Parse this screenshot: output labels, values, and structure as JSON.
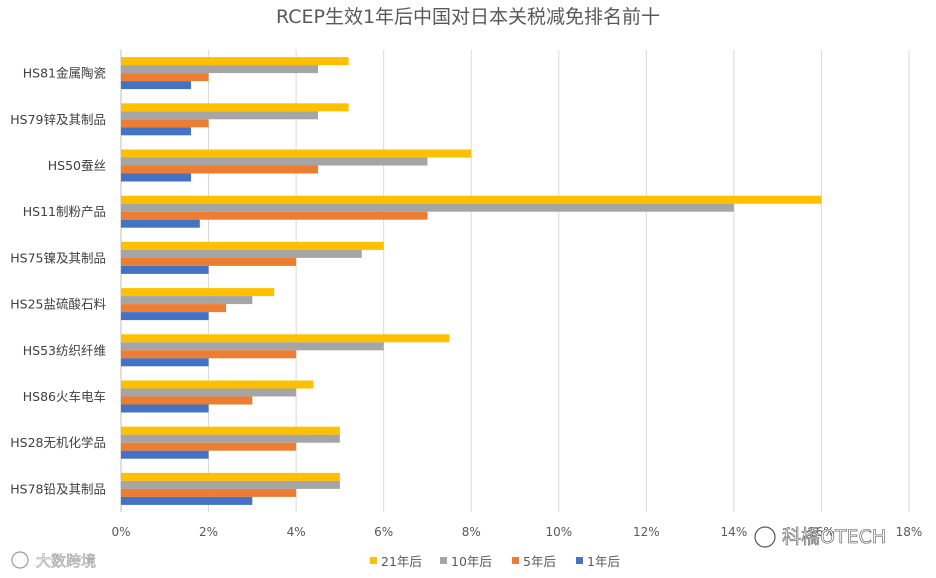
{
  "chart_data": {
    "type": "bar",
    "orientation": "horizontal",
    "title": "RCEP生效1年后中国对日本关税减免排名前十",
    "categories": [
      "HS81金属陶瓷",
      "HS79锌及其制品",
      "HS50蚕丝",
      "HS11制粉产品",
      "HS75镍及其制品",
      "HS25盐硫酸石料",
      "HS53纺织纤维",
      "HS86火车电车",
      "HS28无机化学品",
      "HS78铅及其制品"
    ],
    "series": [
      {
        "name": "21年后",
        "color": "#FFC000",
        "values": [
          5.2,
          5.2,
          8.0,
          16.0,
          6.0,
          3.5,
          7.5,
          4.4,
          5.0,
          5.0
        ]
      },
      {
        "name": "10年后",
        "color": "#A5A5A5",
        "values": [
          4.5,
          4.5,
          7.0,
          14.0,
          5.5,
          3.0,
          6.0,
          4.0,
          5.0,
          5.0
        ]
      },
      {
        "name": "5年后",
        "color": "#ED7D31",
        "values": [
          2.0,
          2.0,
          4.5,
          7.0,
          4.0,
          2.4,
          4.0,
          3.0,
          4.0,
          4.0
        ]
      },
      {
        "name": "1年后",
        "color": "#4472C4",
        "values": [
          1.6,
          1.6,
          1.6,
          1.8,
          2.0,
          2.0,
          2.0,
          2.0,
          2.0,
          3.0
        ]
      }
    ],
    "xlim": [
      0,
      18
    ],
    "x_ticks": [
      "0%",
      "2%",
      "4%",
      "6%",
      "8%",
      "10%",
      "12%",
      "14%",
      "16%",
      "18%"
    ],
    "x_tick_values": [
      0,
      2,
      4,
      6,
      8,
      10,
      12,
      14,
      16,
      18
    ],
    "grid": true,
    "legend_position": "bottom"
  },
  "watermarks": {
    "bottom_left": "大数跨境",
    "bottom_right": "科橋OTECH"
  },
  "colors": {
    "gridline": "#D9D9D9",
    "axis": "#BFBFBF"
  }
}
